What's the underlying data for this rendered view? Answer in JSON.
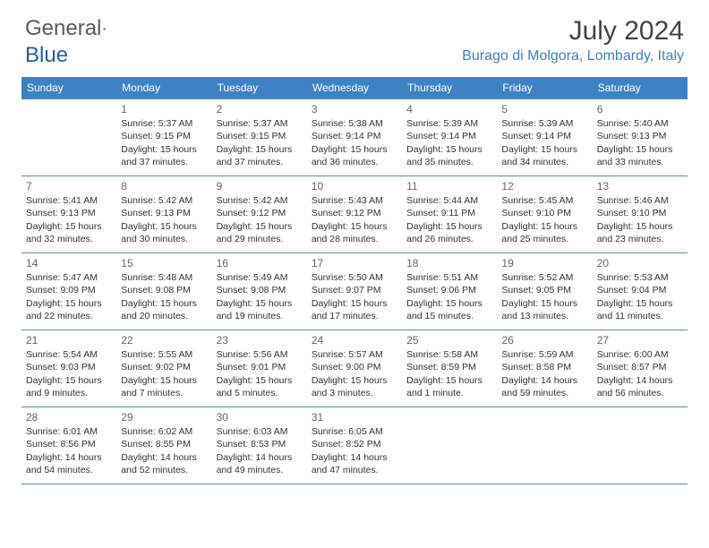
{
  "brand": {
    "word1": "General",
    "word2": "Blue"
  },
  "title": "July 2024",
  "location": "Burago di Molgora, Lombardy, Italy",
  "colors": {
    "header_bg": "#3c82c4",
    "header_text": "#ffffff",
    "accent": "#3c82c4",
    "border": "#5a8bb8",
    "body_text": "#333333",
    "daynum": "#666666"
  },
  "weekdays": [
    "Sunday",
    "Monday",
    "Tuesday",
    "Wednesday",
    "Thursday",
    "Friday",
    "Saturday"
  ],
  "weeks": [
    [
      null,
      {
        "n": "1",
        "sr": "Sunrise: 5:37 AM",
        "ss": "Sunset: 9:15 PM",
        "d1": "Daylight: 15 hours",
        "d2": "and 37 minutes."
      },
      {
        "n": "2",
        "sr": "Sunrise: 5:37 AM",
        "ss": "Sunset: 9:15 PM",
        "d1": "Daylight: 15 hours",
        "d2": "and 37 minutes."
      },
      {
        "n": "3",
        "sr": "Sunrise: 5:38 AM",
        "ss": "Sunset: 9:14 PM",
        "d1": "Daylight: 15 hours",
        "d2": "and 36 minutes."
      },
      {
        "n": "4",
        "sr": "Sunrise: 5:39 AM",
        "ss": "Sunset: 9:14 PM",
        "d1": "Daylight: 15 hours",
        "d2": "and 35 minutes."
      },
      {
        "n": "5",
        "sr": "Sunrise: 5:39 AM",
        "ss": "Sunset: 9:14 PM",
        "d1": "Daylight: 15 hours",
        "d2": "and 34 minutes."
      },
      {
        "n": "6",
        "sr": "Sunrise: 5:40 AM",
        "ss": "Sunset: 9:13 PM",
        "d1": "Daylight: 15 hours",
        "d2": "and 33 minutes."
      }
    ],
    [
      {
        "n": "7",
        "sr": "Sunrise: 5:41 AM",
        "ss": "Sunset: 9:13 PM",
        "d1": "Daylight: 15 hours",
        "d2": "and 32 minutes."
      },
      {
        "n": "8",
        "sr": "Sunrise: 5:42 AM",
        "ss": "Sunset: 9:13 PM",
        "d1": "Daylight: 15 hours",
        "d2": "and 30 minutes."
      },
      {
        "n": "9",
        "sr": "Sunrise: 5:42 AM",
        "ss": "Sunset: 9:12 PM",
        "d1": "Daylight: 15 hours",
        "d2": "and 29 minutes."
      },
      {
        "n": "10",
        "sr": "Sunrise: 5:43 AM",
        "ss": "Sunset: 9:12 PM",
        "d1": "Daylight: 15 hours",
        "d2": "and 28 minutes."
      },
      {
        "n": "11",
        "sr": "Sunrise: 5:44 AM",
        "ss": "Sunset: 9:11 PM",
        "d1": "Daylight: 15 hours",
        "d2": "and 26 minutes."
      },
      {
        "n": "12",
        "sr": "Sunrise: 5:45 AM",
        "ss": "Sunset: 9:10 PM",
        "d1": "Daylight: 15 hours",
        "d2": "and 25 minutes."
      },
      {
        "n": "13",
        "sr": "Sunrise: 5:46 AM",
        "ss": "Sunset: 9:10 PM",
        "d1": "Daylight: 15 hours",
        "d2": "and 23 minutes."
      }
    ],
    [
      {
        "n": "14",
        "sr": "Sunrise: 5:47 AM",
        "ss": "Sunset: 9:09 PM",
        "d1": "Daylight: 15 hours",
        "d2": "and 22 minutes."
      },
      {
        "n": "15",
        "sr": "Sunrise: 5:48 AM",
        "ss": "Sunset: 9:08 PM",
        "d1": "Daylight: 15 hours",
        "d2": "and 20 minutes."
      },
      {
        "n": "16",
        "sr": "Sunrise: 5:49 AM",
        "ss": "Sunset: 9:08 PM",
        "d1": "Daylight: 15 hours",
        "d2": "and 19 minutes."
      },
      {
        "n": "17",
        "sr": "Sunrise: 5:50 AM",
        "ss": "Sunset: 9:07 PM",
        "d1": "Daylight: 15 hours",
        "d2": "and 17 minutes."
      },
      {
        "n": "18",
        "sr": "Sunrise: 5:51 AM",
        "ss": "Sunset: 9:06 PM",
        "d1": "Daylight: 15 hours",
        "d2": "and 15 minutes."
      },
      {
        "n": "19",
        "sr": "Sunrise: 5:52 AM",
        "ss": "Sunset: 9:05 PM",
        "d1": "Daylight: 15 hours",
        "d2": "and 13 minutes."
      },
      {
        "n": "20",
        "sr": "Sunrise: 5:53 AM",
        "ss": "Sunset: 9:04 PM",
        "d1": "Daylight: 15 hours",
        "d2": "and 11 minutes."
      }
    ],
    [
      {
        "n": "21",
        "sr": "Sunrise: 5:54 AM",
        "ss": "Sunset: 9:03 PM",
        "d1": "Daylight: 15 hours",
        "d2": "and 9 minutes."
      },
      {
        "n": "22",
        "sr": "Sunrise: 5:55 AM",
        "ss": "Sunset: 9:02 PM",
        "d1": "Daylight: 15 hours",
        "d2": "and 7 minutes."
      },
      {
        "n": "23",
        "sr": "Sunrise: 5:56 AM",
        "ss": "Sunset: 9:01 PM",
        "d1": "Daylight: 15 hours",
        "d2": "and 5 minutes."
      },
      {
        "n": "24",
        "sr": "Sunrise: 5:57 AM",
        "ss": "Sunset: 9:00 PM",
        "d1": "Daylight: 15 hours",
        "d2": "and 3 minutes."
      },
      {
        "n": "25",
        "sr": "Sunrise: 5:58 AM",
        "ss": "Sunset: 8:59 PM",
        "d1": "Daylight: 15 hours",
        "d2": "and 1 minute."
      },
      {
        "n": "26",
        "sr": "Sunrise: 5:59 AM",
        "ss": "Sunset: 8:58 PM",
        "d1": "Daylight: 14 hours",
        "d2": "and 59 minutes."
      },
      {
        "n": "27",
        "sr": "Sunrise: 6:00 AM",
        "ss": "Sunset: 8:57 PM",
        "d1": "Daylight: 14 hours",
        "d2": "and 56 minutes."
      }
    ],
    [
      {
        "n": "28",
        "sr": "Sunrise: 6:01 AM",
        "ss": "Sunset: 8:56 PM",
        "d1": "Daylight: 14 hours",
        "d2": "and 54 minutes."
      },
      {
        "n": "29",
        "sr": "Sunrise: 6:02 AM",
        "ss": "Sunset: 8:55 PM",
        "d1": "Daylight: 14 hours",
        "d2": "and 52 minutes."
      },
      {
        "n": "30",
        "sr": "Sunrise: 6:03 AM",
        "ss": "Sunset: 8:53 PM",
        "d1": "Daylight: 14 hours",
        "d2": "and 49 minutes."
      },
      {
        "n": "31",
        "sr": "Sunrise: 6:05 AM",
        "ss": "Sunset: 8:52 PM",
        "d1": "Daylight: 14 hours",
        "d2": "and 47 minutes."
      },
      null,
      null,
      null
    ]
  ]
}
